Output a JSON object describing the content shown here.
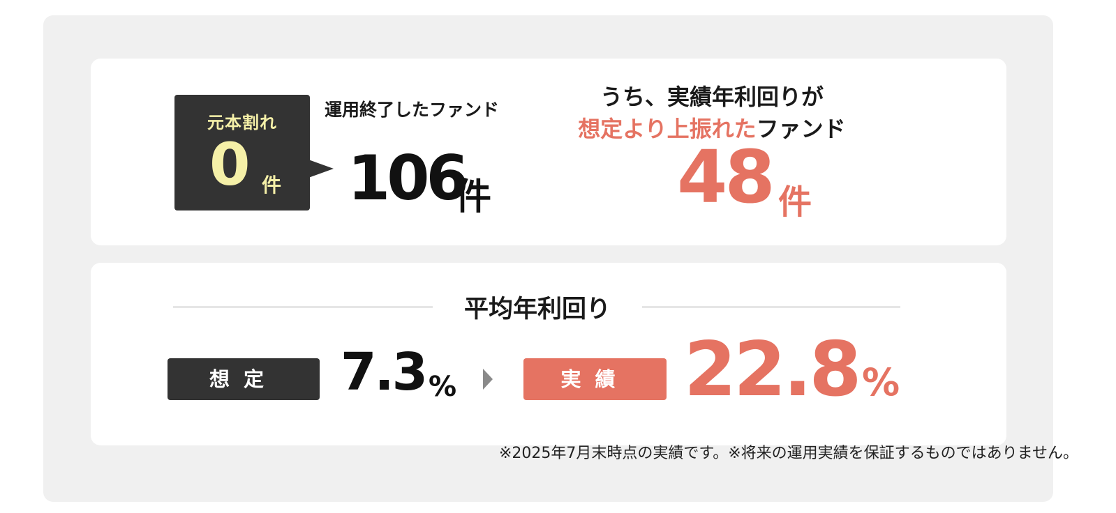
{
  "upper": {
    "badge_label": "元本割れ",
    "badge_count": "0",
    "badge_unit": "件",
    "ended_label": "運用終了したファンド",
    "ended_count": "106",
    "ended_unit": "件",
    "exceeded_title_line1": "うち、実績年利回りが",
    "exceeded_title_highlight": "想定より上振れた",
    "exceeded_title_rest": "ファンド",
    "exceeded_count": "48",
    "exceeded_unit": "件"
  },
  "average": {
    "title": "平均年利回り",
    "plan_label": "想定",
    "plan_value": "7.3",
    "plan_unit": "%",
    "actual_label": "実績",
    "actual_value": "22.8",
    "actual_unit": "%"
  },
  "footnote": "※2025年7月末時点の実績です。※将来の運用実績を保証するものではありません。",
  "colors": {
    "accent_red": "#e57362",
    "dark": "#333333",
    "badge_text": "#f5f0a8",
    "panel_bg": "#f0f0f0"
  }
}
